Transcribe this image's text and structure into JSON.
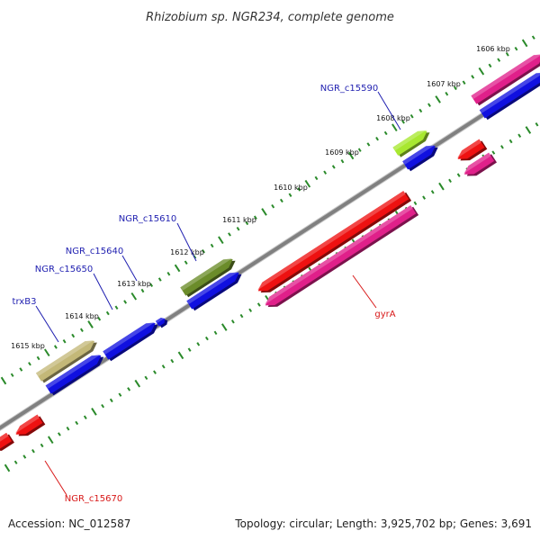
{
  "title": "Rhizobium sp. NGR234, complete genome",
  "footer": {
    "accession": "Accession: NC_012587",
    "topology": "Topology: circular; Length: 3,925,702 bp; Genes: 3,691"
  },
  "ticks": [
    "1606 kbp",
    "1607 kbp",
    "1608 kbp",
    "1609 kbp",
    "1610 kbp",
    "1611 kbp",
    "1612 kbp",
    "1613 kbp",
    "1614 kbp",
    "1615 kbp"
  ],
  "gene_labels": {
    "ngr_c15590": "NGR_c15590",
    "ngr_c15610": "NGR_c15610",
    "ngr_c15640": "NGR_c15640",
    "ngr_c15650": "NGR_c15650",
    "trxb3": "trxB3",
    "gyra": "gyrA",
    "ngr_c15670": "NGR_c15670"
  },
  "colors": {
    "backbone": "#808080",
    "blue": "#1010e0",
    "red": "#ee1111",
    "pink": "#e0208a",
    "olive": "#6b8c2a",
    "khaki": "#c3b878",
    "lime": "#a8e830",
    "tick": "#2a8a2a",
    "label_blue": "#1f1fb0",
    "label_red": "#d81818"
  }
}
